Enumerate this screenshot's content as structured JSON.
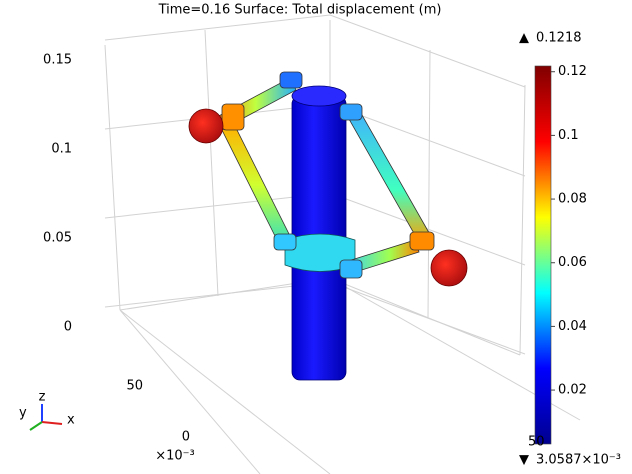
{
  "chart_data": {
    "type": "surface3d",
    "title": "Time=0.16   Surface: Total displacement (m)",
    "max_label": "0.1218",
    "min_label": "3.0587×10⁻³",
    "clim": [
      0.0030587,
      0.1218
    ],
    "colorticks": [
      0.02,
      0.04,
      0.06,
      0.08,
      0.1,
      0.12
    ],
    "colormap": [
      "#00008f",
      "#0000ff",
      "#00ffff",
      "#ffff00",
      "#ff0000",
      "#800000"
    ],
    "zlim": [
      0,
      0.15
    ],
    "zticks": [
      0,
      0.05,
      0.1,
      0.15
    ],
    "yticks": [
      50,
      0
    ],
    "xticks": [
      50
    ],
    "axis_multiplier": "×10⁻³",
    "triad": [
      "x",
      "y",
      "z"
    ]
  }
}
